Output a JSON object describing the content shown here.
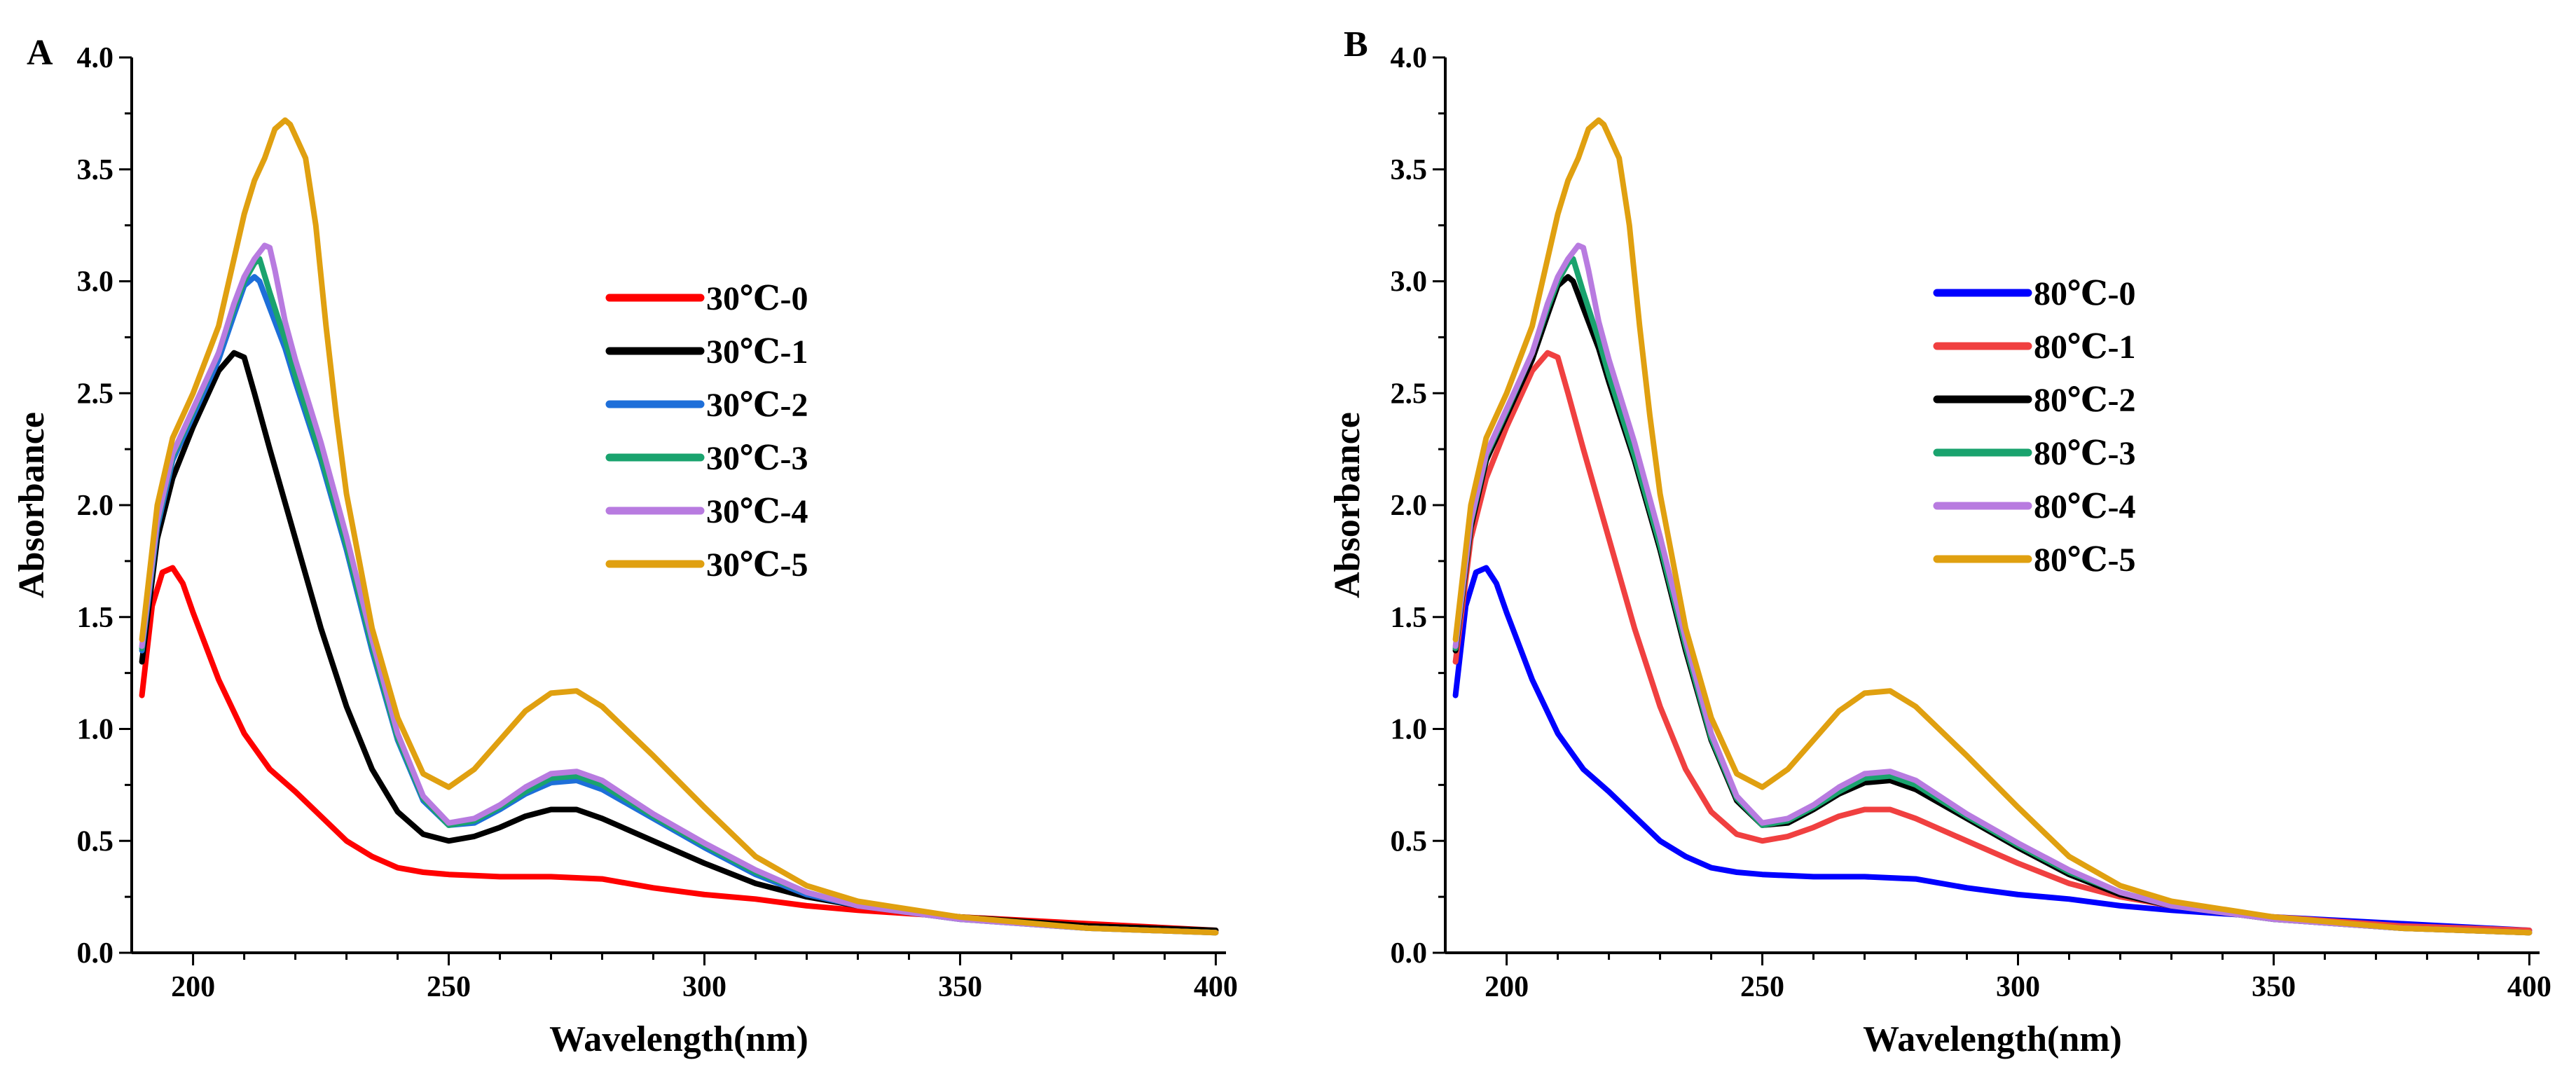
{
  "chart_data": [
    {
      "type": "line",
      "panel_label": "A",
      "title": "",
      "xlabel": "Wavelength(nm)",
      "ylabel": "Absorbance",
      "xlim": [
        188,
        402
      ],
      "ylim": [
        0,
        4.0
      ],
      "xticks": [
        200,
        250,
        300,
        350,
        400
      ],
      "yticks": [
        "0.0",
        "0.5",
        "1.0",
        "1.5",
        "2.0",
        "2.5",
        "3.0",
        "3.5",
        "4.0"
      ],
      "legend_position": "upper-middle",
      "series": [
        {
          "name": "30℃-0",
          "color": "#ff0000",
          "x": [
            190,
            192,
            194,
            196,
            198,
            200,
            205,
            210,
            215,
            220,
            225,
            230,
            235,
            240,
            245,
            250,
            255,
            260,
            270,
            280,
            290,
            300,
            310,
            320,
            330,
            350,
            375,
            400
          ],
          "y": [
            1.15,
            1.55,
            1.7,
            1.72,
            1.65,
            1.52,
            1.22,
            0.98,
            0.82,
            0.72,
            0.61,
            0.5,
            0.43,
            0.38,
            0.36,
            0.35,
            0.345,
            0.34,
            0.34,
            0.33,
            0.29,
            0.26,
            0.24,
            0.21,
            0.19,
            0.16,
            0.13,
            0.1
          ]
        },
        {
          "name": "30℃-1",
          "color": "#000000",
          "x": [
            190,
            193,
            196,
            200,
            205,
            208,
            210,
            212,
            215,
            220,
            225,
            230,
            235,
            240,
            245,
            250,
            255,
            260,
            265,
            270,
            275,
            280,
            290,
            300,
            310,
            320,
            330,
            350,
            375,
            400
          ],
          "y": [
            1.3,
            1.85,
            2.12,
            2.35,
            2.6,
            2.68,
            2.66,
            2.5,
            2.25,
            1.85,
            1.45,
            1.1,
            0.82,
            0.63,
            0.53,
            0.5,
            0.52,
            0.56,
            0.61,
            0.64,
            0.64,
            0.6,
            0.5,
            0.4,
            0.31,
            0.25,
            0.21,
            0.16,
            0.12,
            0.1
          ]
        },
        {
          "name": "30℃-2",
          "color": "#1e6fd9",
          "x": [
            190,
            193,
            196,
            200,
            205,
            208,
            210,
            212,
            213,
            215,
            218,
            220,
            225,
            230,
            235,
            240,
            245,
            250,
            255,
            260,
            265,
            270,
            275,
            280,
            290,
            300,
            310,
            320,
            330,
            350,
            375,
            400
          ],
          "y": [
            1.35,
            1.9,
            2.2,
            2.4,
            2.65,
            2.85,
            2.98,
            3.02,
            3.0,
            2.88,
            2.7,
            2.55,
            2.2,
            1.8,
            1.35,
            0.95,
            0.68,
            0.57,
            0.58,
            0.64,
            0.71,
            0.76,
            0.77,
            0.73,
            0.6,
            0.47,
            0.35,
            0.26,
            0.21,
            0.15,
            0.11,
            0.09
          ]
        },
        {
          "name": "30℃-3",
          "color": "#1aa36e",
          "x": [
            190,
            193,
            196,
            200,
            205,
            208,
            210,
            212,
            213,
            215,
            218,
            220,
            225,
            230,
            235,
            240,
            245,
            250,
            255,
            260,
            265,
            270,
            275,
            280,
            290,
            300,
            310,
            320,
            330,
            350,
            375,
            400
          ],
          "y": [
            1.36,
            1.92,
            2.22,
            2.42,
            2.68,
            2.88,
            3.0,
            3.08,
            3.1,
            2.95,
            2.74,
            2.58,
            2.22,
            1.82,
            1.37,
            0.96,
            0.69,
            0.57,
            0.59,
            0.65,
            0.72,
            0.78,
            0.79,
            0.75,
            0.61,
            0.48,
            0.36,
            0.27,
            0.21,
            0.15,
            0.11,
            0.09
          ]
        },
        {
          "name": "30℃-4",
          "color": "#b87be0",
          "x": [
            190,
            193,
            196,
            200,
            205,
            208,
            210,
            212,
            214,
            215,
            216,
            218,
            220,
            225,
            230,
            235,
            240,
            245,
            250,
            255,
            260,
            265,
            270,
            275,
            280,
            290,
            300,
            310,
            320,
            330,
            350,
            375,
            400
          ],
          "y": [
            1.37,
            1.93,
            2.23,
            2.43,
            2.68,
            2.9,
            3.02,
            3.1,
            3.16,
            3.15,
            3.05,
            2.82,
            2.65,
            2.28,
            1.86,
            1.4,
            0.98,
            0.7,
            0.58,
            0.6,
            0.66,
            0.74,
            0.8,
            0.81,
            0.77,
            0.62,
            0.49,
            0.37,
            0.27,
            0.21,
            0.15,
            0.11,
            0.09
          ]
        },
        {
          "name": "30℃-5",
          "color": "#e0a010",
          "x": [
            190,
            193,
            196,
            200,
            205,
            208,
            210,
            212,
            214,
            216,
            218,
            219,
            220,
            222,
            224,
            226,
            228,
            230,
            235,
            240,
            245,
            250,
            255,
            260,
            265,
            270,
            275,
            280,
            290,
            300,
            310,
            320,
            330,
            350,
            375,
            400
          ],
          "y": [
            1.4,
            2.0,
            2.3,
            2.5,
            2.8,
            3.1,
            3.3,
            3.45,
            3.55,
            3.68,
            3.72,
            3.7,
            3.65,
            3.55,
            3.25,
            2.8,
            2.4,
            2.05,
            1.45,
            1.05,
            0.8,
            0.74,
            0.82,
            0.95,
            1.08,
            1.16,
            1.17,
            1.1,
            0.88,
            0.65,
            0.43,
            0.3,
            0.23,
            0.16,
            0.11,
            0.09
          ]
        }
      ]
    },
    {
      "type": "line",
      "panel_label": "B",
      "title": "",
      "xlabel": "Wavelength(nm)",
      "ylabel": "Absorbance",
      "xlim": [
        188,
        402
      ],
      "ylim": [
        0,
        4.0
      ],
      "xticks": [
        200,
        250,
        300,
        350,
        400
      ],
      "yticks": [
        "0.0",
        "0.5",
        "1.0",
        "1.5",
        "2.0",
        "2.5",
        "3.0",
        "3.5",
        "4.0"
      ],
      "legend_position": "upper-middle",
      "series": [
        {
          "name": "80℃-0",
          "color": "#0000ff",
          "x": [
            190,
            192,
            194,
            196,
            198,
            200,
            205,
            210,
            215,
            220,
            225,
            230,
            235,
            240,
            245,
            250,
            255,
            260,
            270,
            280,
            290,
            300,
            310,
            320,
            330,
            350,
            375,
            400
          ],
          "y": [
            1.15,
            1.55,
            1.7,
            1.72,
            1.65,
            1.52,
            1.22,
            0.98,
            0.82,
            0.72,
            0.61,
            0.5,
            0.43,
            0.38,
            0.36,
            0.35,
            0.345,
            0.34,
            0.34,
            0.33,
            0.29,
            0.26,
            0.24,
            0.21,
            0.19,
            0.16,
            0.13,
            0.1
          ]
        },
        {
          "name": "80℃-1",
          "color": "#f04040",
          "x": [
            190,
            193,
            196,
            200,
            205,
            208,
            210,
            212,
            215,
            220,
            225,
            230,
            235,
            240,
            245,
            250,
            255,
            260,
            265,
            270,
            275,
            280,
            290,
            300,
            310,
            320,
            330,
            350,
            375,
            400
          ],
          "y": [
            1.3,
            1.85,
            2.12,
            2.35,
            2.6,
            2.68,
            2.66,
            2.5,
            2.25,
            1.85,
            1.45,
            1.1,
            0.82,
            0.63,
            0.53,
            0.5,
            0.52,
            0.56,
            0.61,
            0.64,
            0.64,
            0.6,
            0.5,
            0.4,
            0.31,
            0.25,
            0.21,
            0.16,
            0.12,
            0.1
          ]
        },
        {
          "name": "80℃-2",
          "color": "#000000",
          "x": [
            190,
            193,
            196,
            200,
            205,
            208,
            210,
            212,
            213,
            215,
            218,
            220,
            225,
            230,
            235,
            240,
            245,
            250,
            255,
            260,
            265,
            270,
            275,
            280,
            290,
            300,
            310,
            320,
            330,
            350,
            375,
            400
          ],
          "y": [
            1.35,
            1.9,
            2.2,
            2.4,
            2.65,
            2.85,
            2.98,
            3.02,
            3.0,
            2.88,
            2.7,
            2.55,
            2.2,
            1.8,
            1.35,
            0.95,
            0.68,
            0.57,
            0.58,
            0.64,
            0.71,
            0.76,
            0.77,
            0.73,
            0.6,
            0.47,
            0.35,
            0.26,
            0.21,
            0.15,
            0.11,
            0.09
          ]
        },
        {
          "name": "80℃-3",
          "color": "#1aa36e",
          "x": [
            190,
            193,
            196,
            200,
            205,
            208,
            210,
            212,
            213,
            215,
            218,
            220,
            225,
            230,
            235,
            240,
            245,
            250,
            255,
            260,
            265,
            270,
            275,
            280,
            290,
            300,
            310,
            320,
            330,
            350,
            375,
            400
          ],
          "y": [
            1.36,
            1.92,
            2.22,
            2.42,
            2.68,
            2.88,
            3.0,
            3.08,
            3.1,
            2.95,
            2.74,
            2.58,
            2.22,
            1.82,
            1.37,
            0.96,
            0.69,
            0.57,
            0.59,
            0.65,
            0.72,
            0.78,
            0.79,
            0.75,
            0.61,
            0.48,
            0.36,
            0.27,
            0.21,
            0.15,
            0.11,
            0.09
          ]
        },
        {
          "name": "80℃-4",
          "color": "#b87be0",
          "x": [
            190,
            193,
            196,
            200,
            205,
            208,
            210,
            212,
            214,
            215,
            216,
            218,
            220,
            225,
            230,
            235,
            240,
            245,
            250,
            255,
            260,
            265,
            270,
            275,
            280,
            290,
            300,
            310,
            320,
            330,
            350,
            375,
            400
          ],
          "y": [
            1.37,
            1.93,
            2.23,
            2.43,
            2.68,
            2.9,
            3.02,
            3.1,
            3.16,
            3.15,
            3.05,
            2.82,
            2.65,
            2.28,
            1.86,
            1.4,
            0.98,
            0.7,
            0.58,
            0.6,
            0.66,
            0.74,
            0.8,
            0.81,
            0.77,
            0.62,
            0.49,
            0.37,
            0.27,
            0.21,
            0.15,
            0.11,
            0.09
          ]
        },
        {
          "name": "80℃-5",
          "color": "#e0a010",
          "x": [
            190,
            193,
            196,
            200,
            205,
            208,
            210,
            212,
            214,
            216,
            218,
            219,
            220,
            222,
            224,
            226,
            228,
            230,
            235,
            240,
            245,
            250,
            255,
            260,
            265,
            270,
            275,
            280,
            290,
            300,
            310,
            320,
            330,
            350,
            375,
            400
          ],
          "y": [
            1.4,
            2.0,
            2.3,
            2.5,
            2.8,
            3.1,
            3.3,
            3.45,
            3.55,
            3.68,
            3.72,
            3.7,
            3.65,
            3.55,
            3.25,
            2.8,
            2.4,
            2.05,
            1.45,
            1.05,
            0.8,
            0.74,
            0.82,
            0.95,
            1.08,
            1.16,
            1.17,
            1.1,
            0.88,
            0.65,
            0.43,
            0.3,
            0.23,
            0.16,
            0.11,
            0.09
          ]
        }
      ]
    }
  ]
}
